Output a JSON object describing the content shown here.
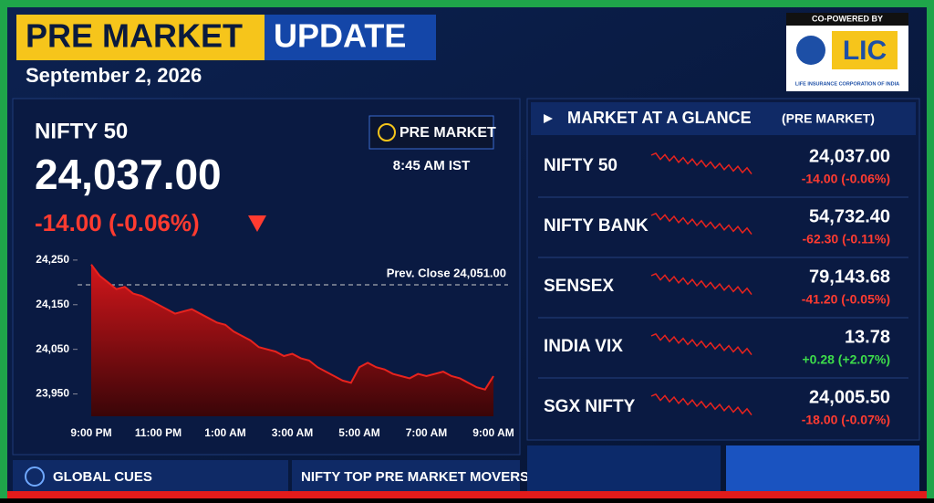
{
  "header": {
    "title_highlight": "PRE MARKET",
    "title_rest": "UPDATE",
    "date": "September 2, 2026",
    "sponsor_caption": "CO-POWERED BY",
    "sponsor_name": "LIC",
    "sponsor_full": "LIFE INSURANCE CORPORATION OF INDIA"
  },
  "quote": {
    "name": "NIFTY 50",
    "price": "24,037.00",
    "change": "-14.00 (-0.06%)",
    "badge": "PRE MARKET",
    "time": "8:45 AM IST"
  },
  "chart_data": {
    "type": "line",
    "annotation": "Prev. Close 24,051.00",
    "color": "#e8231e",
    "categories": [
      "9:00 PM",
      null,
      null,
      null,
      null,
      null,
      null,
      null,
      "11:00 PM",
      null,
      null,
      null,
      null,
      null,
      null,
      null,
      "1:00 AM",
      null,
      null,
      null,
      null,
      null,
      null,
      null,
      "3:00 AM",
      null,
      null,
      null,
      null,
      null,
      null,
      null,
      "5:00 AM",
      null,
      null,
      null,
      null,
      null,
      null,
      null,
      "7:00 AM",
      null,
      null,
      null,
      null,
      null,
      null,
      null,
      "9:00 AM"
    ],
    "values": [
      24240,
      24215,
      24200,
      24185,
      24190,
      24175,
      24170,
      24160,
      24150,
      24140,
      24130,
      24135,
      24140,
      24130,
      24120,
      24110,
      24105,
      24090,
      24080,
      24070,
      24055,
      24050,
      24045,
      24035,
      24040,
      24030,
      24025,
      24010,
      24000,
      23990,
      23980,
      23975,
      24010,
      24020,
      24010,
      24005,
      23995,
      23990,
      23985,
      23995,
      23990,
      23995,
      24000,
      23990,
      23985,
      23975,
      23965,
      23960,
      23990
    ],
    "ylim": [
      23900,
      24260
    ],
    "yticks": [
      {
        "value": 23950,
        "label": "23,950"
      },
      {
        "value": 24050,
        "label": "24,050"
      },
      {
        "value": 24150,
        "label": "24,150"
      },
      {
        "value": 24250,
        "label": "24,250"
      }
    ]
  },
  "glance": {
    "title": "MARKET AT A GLANCE",
    "subtitle": "(PRE MARKET)",
    "rows": [
      {
        "name": "NIFTY 50",
        "value": "24,037.00",
        "change": "-14.00 (-0.06%)",
        "color": "#ff3b30"
      },
      {
        "name": "NIFTY BANK",
        "value": "54,732.40",
        "change": "-62.30 (-0.11%)",
        "color": "#ff3b30"
      },
      {
        "name": "SENSEX",
        "value": "79,143.68",
        "change": "-41.20 (-0.05%)",
        "color": "#ff3b30"
      },
      {
        "name": "INDIA VIX",
        "value": "13.78",
        "change": "+0.28 (+2.07%)",
        "color": "#3ddc4a"
      },
      {
        "name": "SGX NIFTY",
        "value": "24,005.50",
        "change": "-18.00 (-0.07%)",
        "color": "#ff3b30"
      }
    ]
  },
  "footer": {
    "tab1": "GLOBAL CUES",
    "tab2": "NIFTY TOP PRE MARKET MOVERS"
  }
}
